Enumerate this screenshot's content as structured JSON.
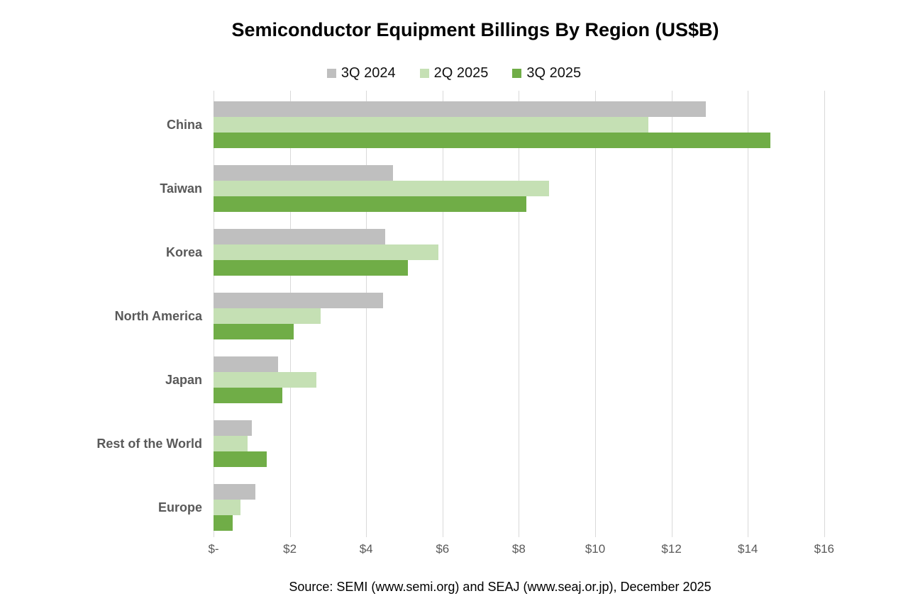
{
  "chart_data": {
    "type": "bar",
    "orientation": "horizontal",
    "title": "Semiconductor Equipment Billings By Region (US$B)",
    "categories": [
      "China",
      "Taiwan",
      "Korea",
      "North America",
      "Japan",
      "Rest of the World",
      "Europe"
    ],
    "series": [
      {
        "name": "3Q 2024",
        "color": "#bfbfbf",
        "values": [
          12.9,
          4.7,
          4.5,
          4.45,
          1.7,
          1.0,
          1.1
        ]
      },
      {
        "name": "2Q 2025",
        "color": "#c5e0b4",
        "values": [
          11.4,
          8.8,
          5.9,
          2.8,
          2.7,
          0.9,
          0.7
        ]
      },
      {
        "name": "3Q 2025",
        "color": "#70ad47",
        "values": [
          14.6,
          8.2,
          5.1,
          2.1,
          1.8,
          1.4,
          0.5
        ]
      }
    ],
    "xlim": [
      0,
      16
    ],
    "x_tick_interval": 2,
    "x_tick_labels": [
      "$-",
      "$2",
      "$4",
      "$6",
      "$8",
      "$10",
      "$12",
      "$14",
      "$16"
    ],
    "grid": "vertical",
    "gridline_color": "#d9d9d9",
    "legend_position": "top",
    "label_color": "#595959",
    "source_note": "Source: SEMI (www.semi.org) and SEAJ (www.seaj.or.jp), December 2025"
  }
}
